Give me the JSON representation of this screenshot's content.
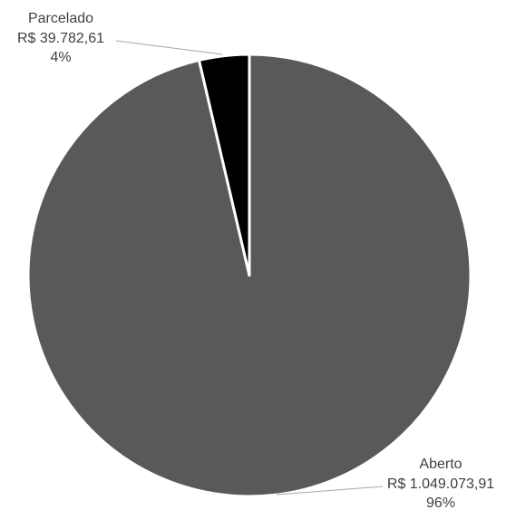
{
  "chart_data": {
    "type": "pie",
    "start_angle_deg": 0,
    "direction": "counterclockwise-from-top",
    "slices": [
      {
        "label": "Aberto",
        "value": 1049073.91,
        "value_text": "R$ 1.049.073,91",
        "percent_text": "96%",
        "color": "#595959"
      },
      {
        "label": "Parcelado",
        "value": 39782.61,
        "value_text": "R$ 39.782,61",
        "percent_text": "4%",
        "color": "#000000"
      }
    ],
    "slice_border_color": "#ffffff",
    "leader_line_color": "#a6a6a6",
    "label_color": "#404040"
  }
}
